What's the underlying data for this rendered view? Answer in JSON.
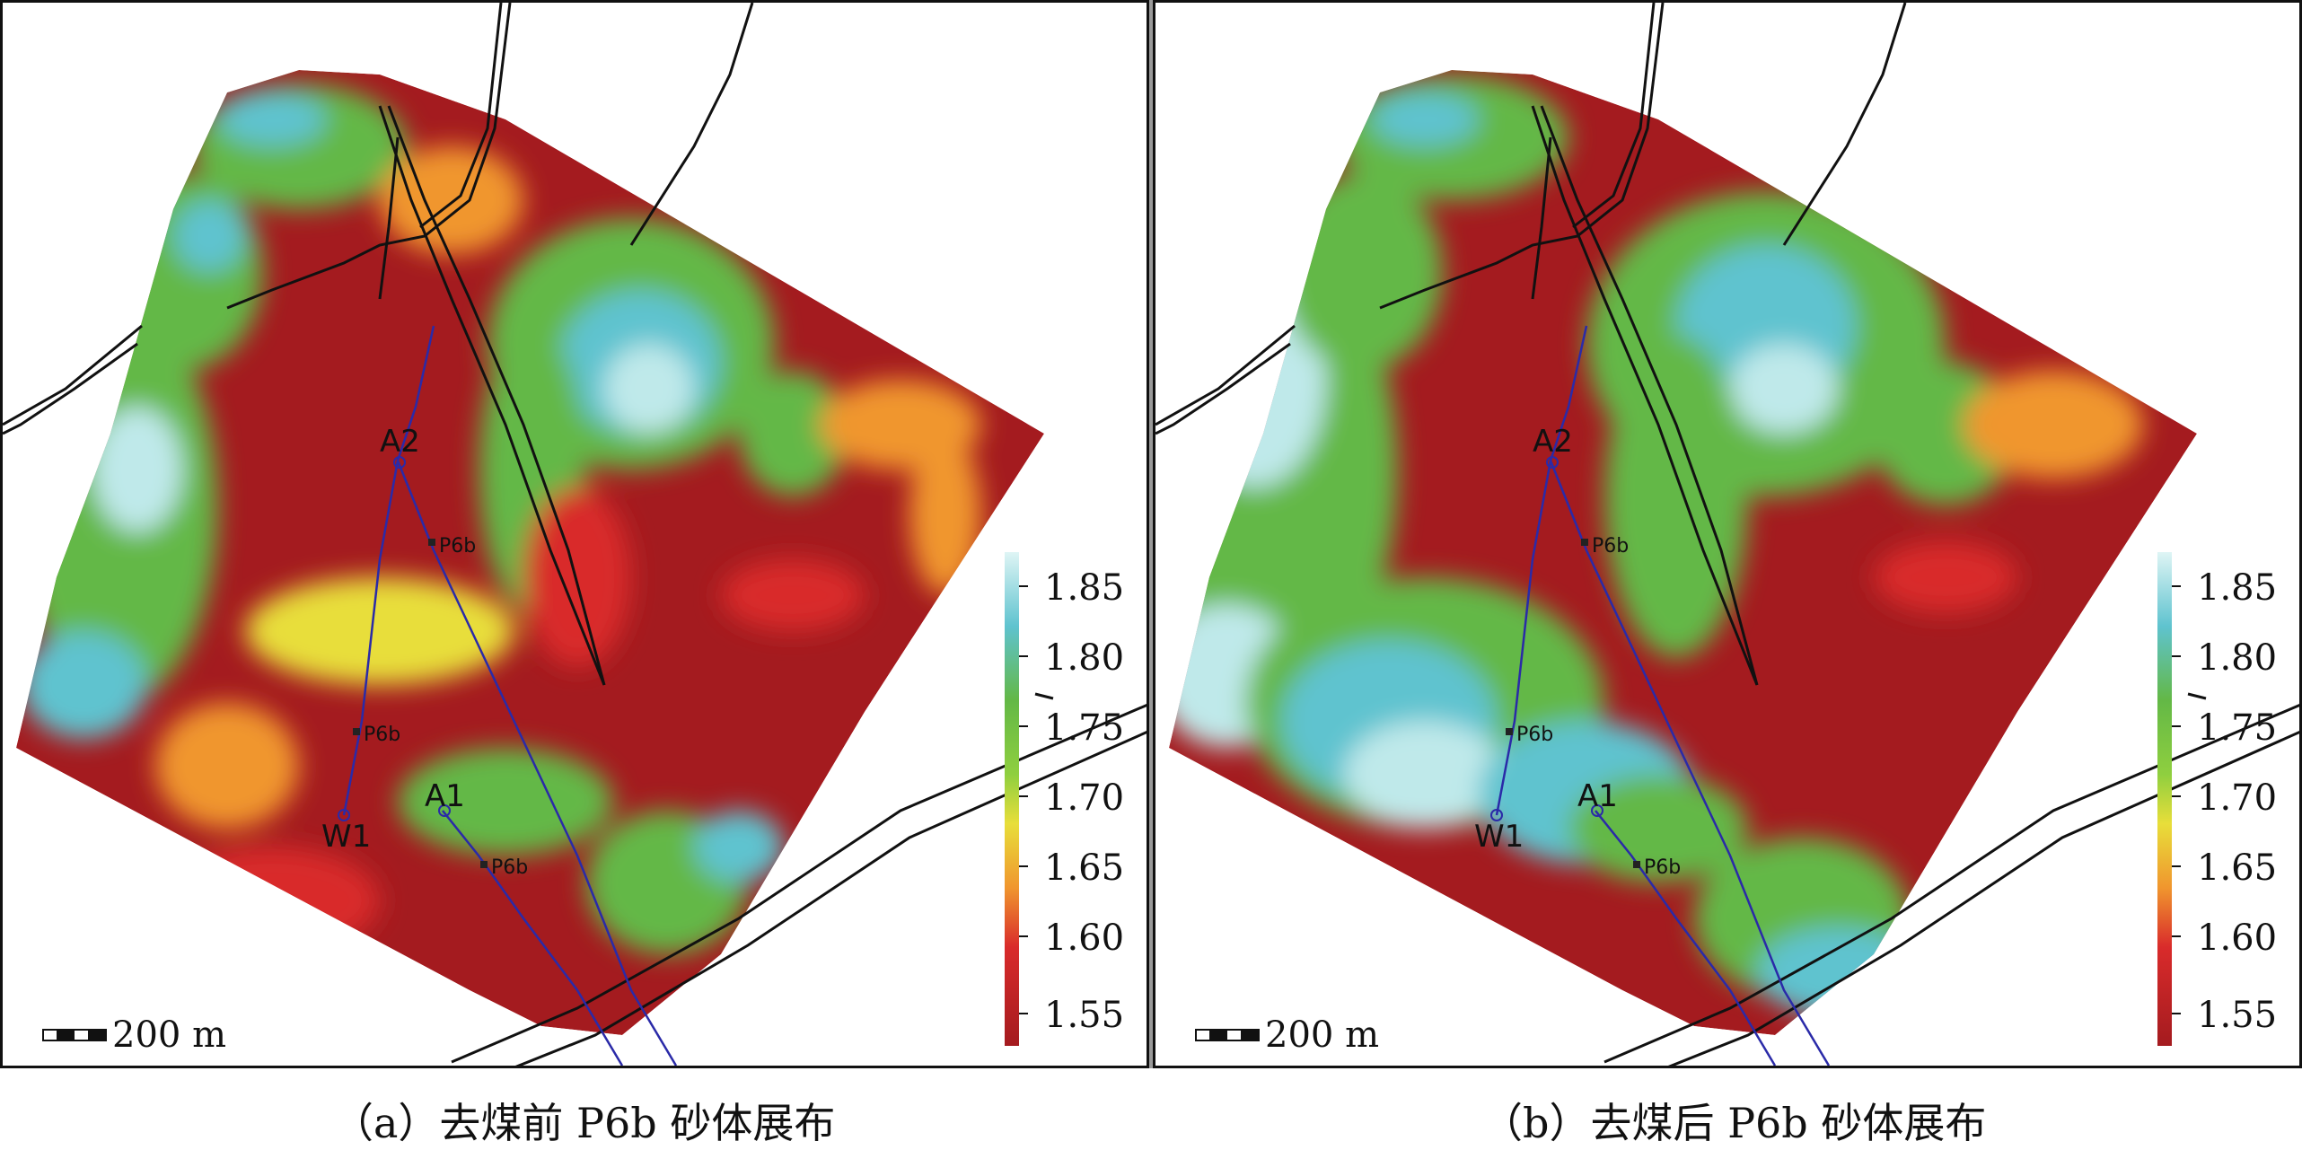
{
  "panels": [
    {
      "id": "a",
      "caption": "（a）去煤前 P6b 砂体展布",
      "wells": [
        {
          "name": "A2",
          "marker": "P6b"
        },
        {
          "name": "W1",
          "marker": "P6b"
        },
        {
          "name": "A1",
          "marker": "P6b"
        }
      ],
      "scale_bar": "200 m",
      "colorbar_ticks": [
        "1.85",
        "1.80",
        "1.75",
        "1.70",
        "1.65",
        "1.60",
        "1.55"
      ]
    },
    {
      "id": "b",
      "caption": "（b）去煤后 P6b 砂体展布",
      "wells": [
        {
          "name": "A2",
          "marker": "P6b"
        },
        {
          "name": "W1",
          "marker": "P6b"
        },
        {
          "name": "A1",
          "marker": "P6b"
        }
      ],
      "scale_bar": "200 m",
      "colorbar_ticks": [
        "1.85",
        "1.80",
        "1.75",
        "1.70",
        "1.65",
        "1.60",
        "1.55"
      ]
    }
  ],
  "colors": {
    "high": "#bfe9ea",
    "cyan": "#5fc3cf",
    "green": "#63b846",
    "yellow": "#e8de3a",
    "orange": "#f0962e",
    "red": "#d92b2b",
    "low": "#a41b1f",
    "well_path": "#2a2aa8"
  }
}
